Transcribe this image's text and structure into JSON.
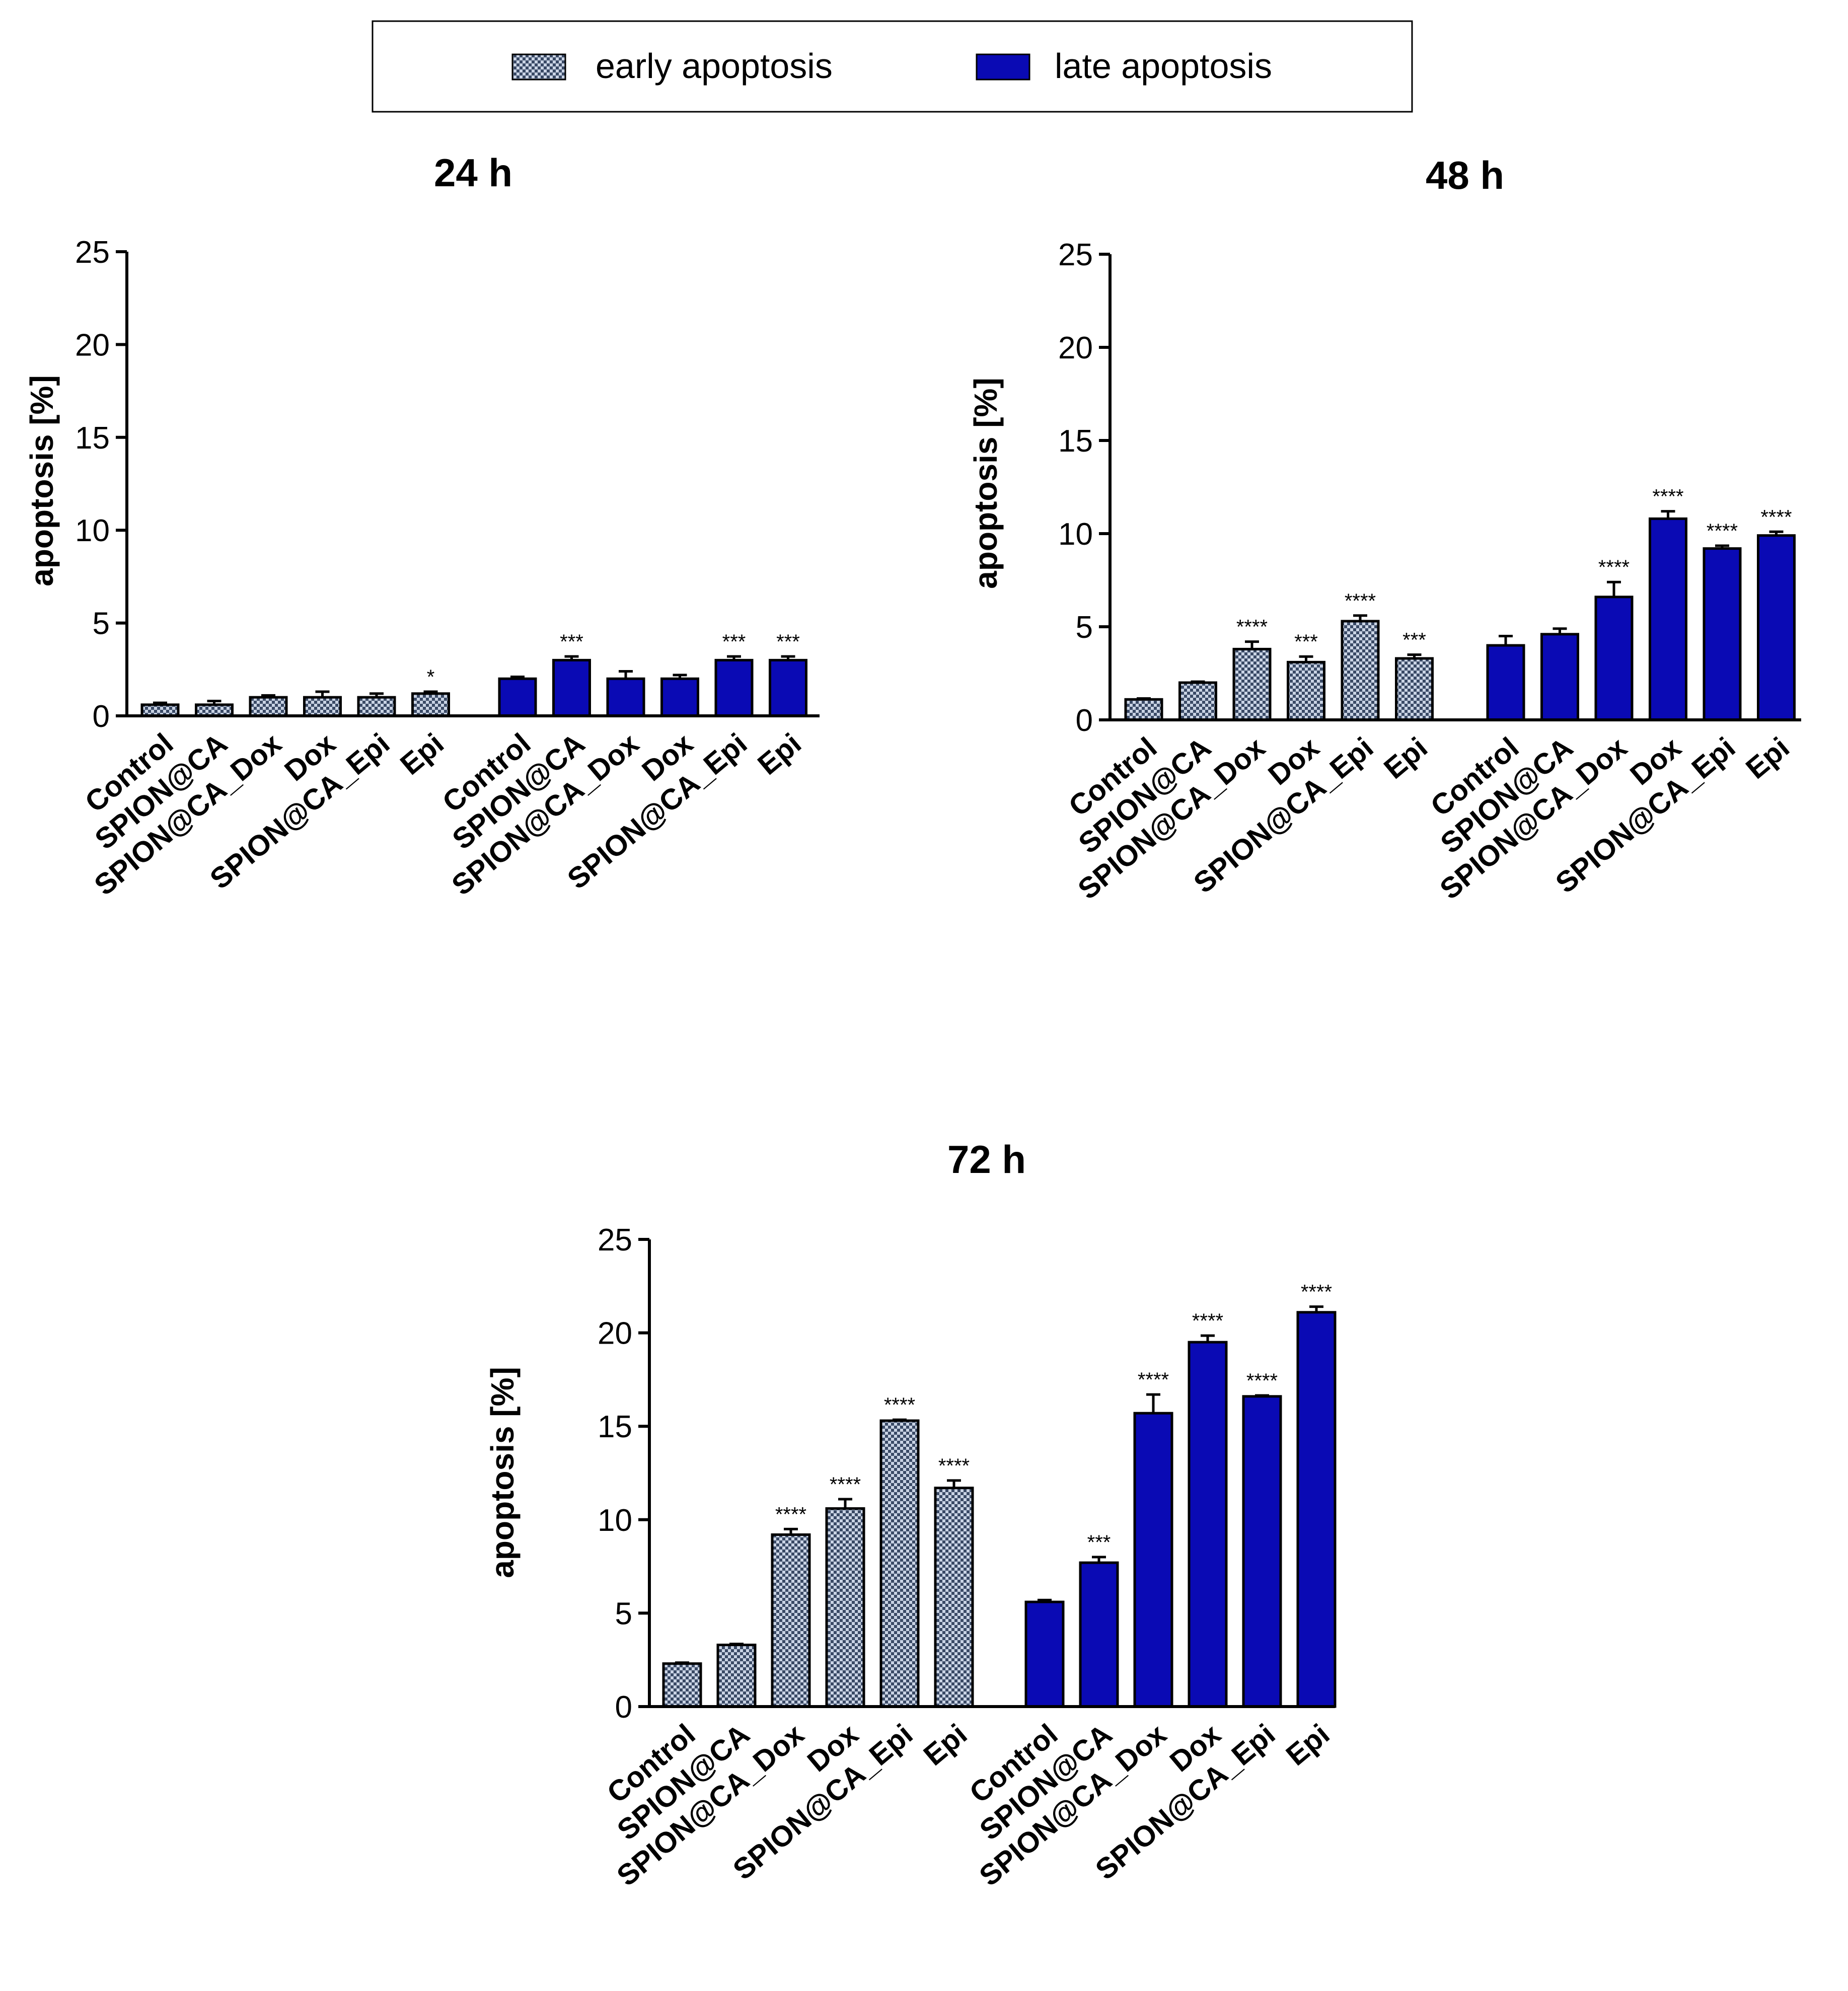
{
  "legend": {
    "items": [
      {
        "label": "early apoptosis",
        "style": "checkered"
      },
      {
        "label": "late apoptosis",
        "style": "solid"
      }
    ]
  },
  "colors": {
    "late": "#0a0ab4",
    "early_light": "#c9d3e4",
    "early_dark": "#3a4a66",
    "axis": "#000000"
  },
  "chart_data": [
    {
      "type": "bar",
      "title": "24 h",
      "xlabel": "",
      "ylabel": "apoptosis [%]",
      "ylim": [
        0,
        25
      ],
      "yticks": [
        0,
        5,
        10,
        15,
        20,
        25
      ],
      "categories": [
        "Control",
        "SPION@CA",
        "SPION@CA_Dox",
        "Dox",
        "SPION@CA_Epi",
        "Epi"
      ],
      "series": [
        {
          "name": "early apoptosis",
          "values": [
            0.6,
            0.6,
            1.0,
            1.0,
            1.0,
            1.2
          ],
          "errors": [
            0.1,
            0.2,
            0.1,
            0.3,
            0.2,
            0.1
          ],
          "annotations": [
            "",
            "",
            "",
            "",
            "",
            "*"
          ]
        },
        {
          "name": "late apoptosis",
          "values": [
            2.0,
            3.0,
            2.0,
            2.0,
            3.0,
            3.0
          ],
          "errors": [
            0.1,
            0.2,
            0.4,
            0.2,
            0.2,
            0.2
          ],
          "annotations": [
            "",
            "***",
            "",
            "",
            "***",
            "***"
          ]
        }
      ]
    },
    {
      "type": "bar",
      "title": "48 h",
      "xlabel": "",
      "ylabel": "apoptosis [%]",
      "ylim": [
        0,
        25
      ],
      "yticks": [
        0,
        5,
        10,
        15,
        20,
        25
      ],
      "categories": [
        "Control",
        "SPION@CA",
        "SPION@CA_Dox",
        "Dox",
        "SPION@CA_Epi",
        "Epi"
      ],
      "series": [
        {
          "name": "early apoptosis",
          "values": [
            1.1,
            2.0,
            3.8,
            3.1,
            5.3,
            3.3
          ],
          "errors": [
            0.05,
            0.05,
            0.4,
            0.3,
            0.3,
            0.2
          ],
          "annotations": [
            "",
            "",
            "****",
            "***",
            "****",
            "***"
          ]
        },
        {
          "name": "late apoptosis",
          "values": [
            4.0,
            4.6,
            6.6,
            10.8,
            9.2,
            9.9
          ],
          "errors": [
            0.5,
            0.3,
            0.8,
            0.4,
            0.15,
            0.2
          ],
          "annotations": [
            "",
            "",
            "****",
            "****",
            "****",
            "****"
          ]
        }
      ]
    },
    {
      "type": "bar",
      "title": "72 h",
      "xlabel": "",
      "ylabel": "apoptosis [%]",
      "ylim": [
        0,
        25
      ],
      "yticks": [
        0,
        5,
        10,
        15,
        20,
        25
      ],
      "categories": [
        "Control",
        "SPION@CA",
        "SPION@CA_Dox",
        "Dox",
        "SPION@CA_Epi",
        "Epi"
      ],
      "series": [
        {
          "name": "early apoptosis",
          "values": [
            2.3,
            3.3,
            9.2,
            10.6,
            15.3,
            11.7
          ],
          "errors": [
            0.05,
            0.05,
            0.3,
            0.5,
            0.05,
            0.4
          ],
          "annotations": [
            "",
            "",
            "****",
            "****",
            "****",
            "****"
          ]
        },
        {
          "name": "late apoptosis",
          "values": [
            5.6,
            7.7,
            15.7,
            19.5,
            16.6,
            21.1
          ],
          "errors": [
            0.1,
            0.3,
            1.0,
            0.35,
            0.05,
            0.3
          ],
          "annotations": [
            "",
            "***",
            "****",
            "****",
            "****",
            "****"
          ]
        }
      ]
    }
  ]
}
